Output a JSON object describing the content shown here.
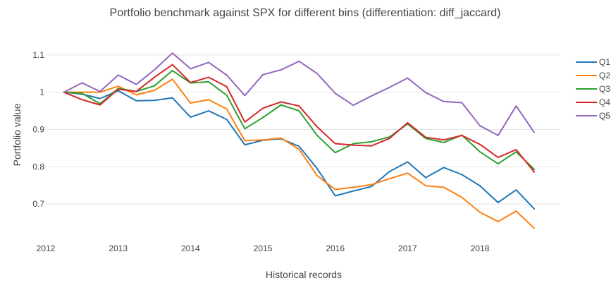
{
  "chart_data": {
    "type": "line",
    "title": "Portfolio benchmark against SPX for different bins (differentiation: diff_jaccard)",
    "xlabel": "Historical records",
    "ylabel": "Portfolio value",
    "x_ticks": [
      "2012",
      "2013",
      "2014",
      "2015",
      "2016",
      "2017",
      "2018"
    ],
    "y_ticks": [
      "0.7",
      "0.8",
      "0.9",
      "1",
      "1.1"
    ],
    "xlim": [
      2012.0,
      2019.1
    ],
    "ylim": [
      0.615,
      1.13
    ],
    "grid": "y",
    "legend_position": "right",
    "x": [
      2012.25,
      2012.5,
      2012.75,
      2013.0,
      2013.25,
      2013.5,
      2013.75,
      2014.0,
      2014.25,
      2014.5,
      2014.75,
      2015.0,
      2015.25,
      2015.5,
      2015.75,
      2016.0,
      2016.25,
      2016.5,
      2016.75,
      2017.0,
      2017.25,
      2017.5,
      2017.75,
      2018.0,
      2018.25,
      2018.5,
      2018.75
    ],
    "series": [
      {
        "name": "Q1",
        "color": "#1f77b4",
        "values": [
          1.0,
          0.995,
          0.983,
          1.004,
          0.977,
          0.978,
          0.985,
          0.933,
          0.95,
          0.927,
          0.859,
          0.871,
          0.875,
          0.855,
          0.795,
          0.722,
          0.735,
          0.747,
          0.787,
          0.813,
          0.771,
          0.798,
          0.779,
          0.749,
          0.704,
          0.738,
          0.687
        ]
      },
      {
        "name": "Q2",
        "color": "#ff7f0e",
        "values": [
          1.0,
          1.0,
          1.0,
          1.016,
          0.993,
          1.005,
          1.035,
          0.971,
          0.98,
          0.955,
          0.87,
          0.872,
          0.877,
          0.847,
          0.776,
          0.739,
          0.745,
          0.752,
          0.768,
          0.783,
          0.749,
          0.745,
          0.718,
          0.678,
          0.653,
          0.681,
          0.635
        ]
      },
      {
        "name": "Q3",
        "color": "#2ca02c",
        "values": [
          1.0,
          0.997,
          0.969,
          1.01,
          1.002,
          1.017,
          1.058,
          1.025,
          1.028,
          0.992,
          0.902,
          0.932,
          0.966,
          0.95,
          0.884,
          0.838,
          0.862,
          0.867,
          0.88,
          0.915,
          0.876,
          0.865,
          0.885,
          0.84,
          0.808,
          0.84,
          0.793
        ]
      },
      {
        "name": "Q4",
        "color": "#d62728",
        "values": [
          1.0,
          0.98,
          0.966,
          1.008,
          1.002,
          1.04,
          1.074,
          1.026,
          1.04,
          1.015,
          0.92,
          0.957,
          0.974,
          0.963,
          0.907,
          0.862,
          0.858,
          0.856,
          0.876,
          0.918,
          0.879,
          0.872,
          0.884,
          0.86,
          0.825,
          0.846,
          0.786
        ]
      },
      {
        "name": "Q5",
        "color": "#9467bd",
        "values": [
          1.0,
          1.025,
          1.002,
          1.046,
          1.021,
          1.06,
          1.105,
          1.063,
          1.08,
          1.046,
          0.991,
          1.047,
          1.06,
          1.083,
          1.05,
          0.997,
          0.965,
          0.99,
          1.013,
          1.038,
          0.999,
          0.975,
          0.972,
          0.91,
          0.884,
          0.963,
          0.892
        ]
      }
    ]
  }
}
